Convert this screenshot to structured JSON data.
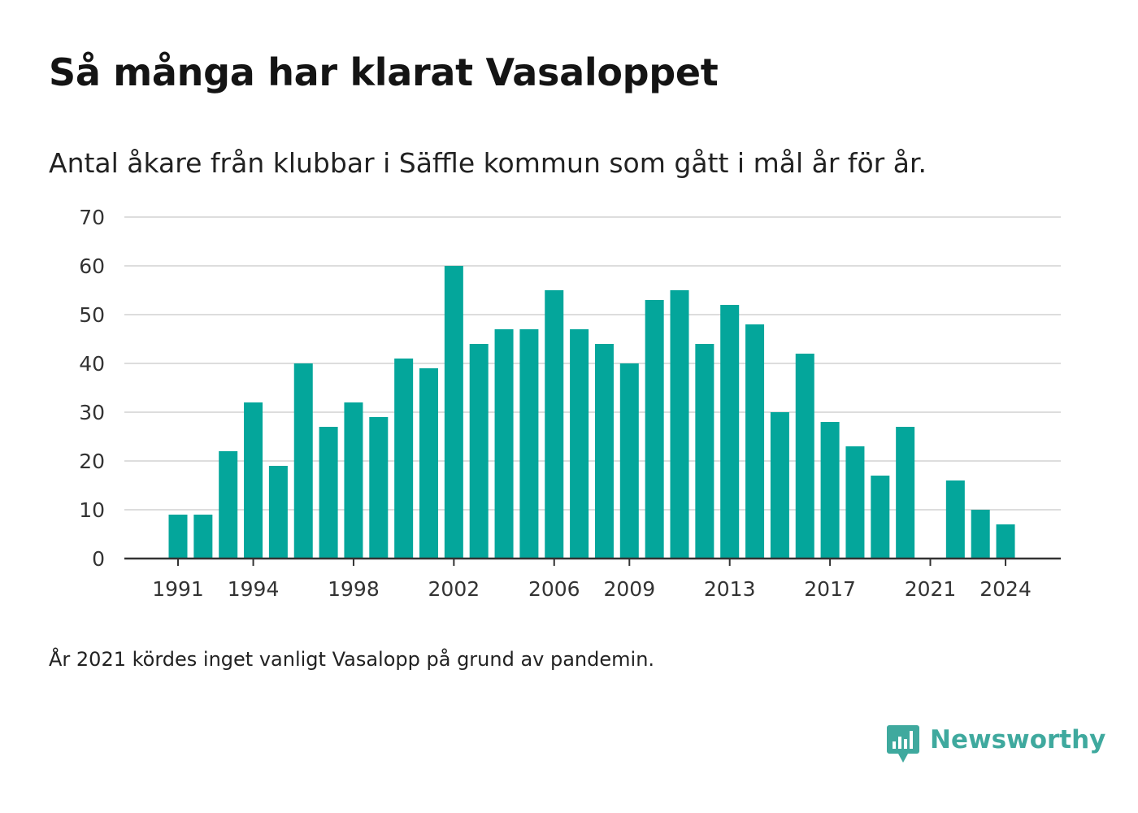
{
  "title": "Så många har klarat Vasaloppet",
  "subtitle": "Antal åkare från klubbar i Säffle kommun som gått i mål år för år.",
  "note": "År 2021 kördes inget vanligt Vasalopp på grund av pandemin.",
  "brand": {
    "name": "Newsworthy",
    "icon": "newsworthy-logo-icon",
    "color": "#3fa99e"
  },
  "colors": {
    "bar": "#04a69b",
    "grid": "#dddddd",
    "axis": "#333333",
    "tick_label": "#333333"
  },
  "chart_data": {
    "type": "bar",
    "title": "",
    "xlabel": "",
    "ylabel": "",
    "ylim": [
      0,
      70
    ],
    "yticks": [
      0,
      10,
      20,
      30,
      40,
      50,
      60,
      70
    ],
    "xticks": [
      1991,
      1994,
      1998,
      2002,
      2006,
      2009,
      2013,
      2017,
      2021,
      2024
    ],
    "grid": true,
    "categories": [
      1991,
      1992,
      1993,
      1994,
      1995,
      1996,
      1997,
      1998,
      1999,
      2000,
      2001,
      2002,
      2003,
      2004,
      2005,
      2006,
      2007,
      2008,
      2009,
      2010,
      2011,
      2012,
      2013,
      2014,
      2015,
      2016,
      2017,
      2018,
      2019,
      2020,
      2021,
      2022,
      2023,
      2024
    ],
    "values": [
      9,
      9,
      22,
      32,
      19,
      40,
      27,
      32,
      29,
      41,
      39,
      60,
      44,
      47,
      47,
      55,
      47,
      44,
      40,
      53,
      55,
      44,
      52,
      48,
      30,
      42,
      28,
      23,
      17,
      27,
      0,
      16,
      10,
      7
    ]
  }
}
